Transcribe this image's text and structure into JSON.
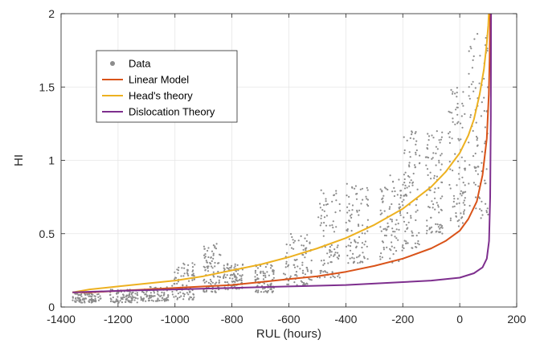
{
  "chart_data": {
    "type": "scatter",
    "title": "",
    "xlabel": "RUL (hours)",
    "ylabel": "HI",
    "xlim": [
      -1400,
      200
    ],
    "ylim": [
      0,
      2
    ],
    "x_ticks": [
      -1400,
      -1200,
      -1000,
      -800,
      -600,
      -400,
      -200,
      0,
      200
    ],
    "x_tick_labels": [
      "-1400",
      "-1200",
      "-1000",
      "-800",
      "-600",
      "-400",
      "-200",
      "0",
      "200"
    ],
    "y_ticks": [
      0,
      0.5,
      1,
      1.5,
      2
    ],
    "y_tick_labels": [
      "0",
      "0.5",
      "1",
      "1.5",
      "2"
    ],
    "grid": true,
    "legend_position": "top-left",
    "scatter": {
      "name": "Data",
      "color": "#8c8c8c",
      "clusters": [
        {
          "x": [
            -1360,
            -1260
          ],
          "y": [
            0.03,
            0.1
          ]
        },
        {
          "x": [
            -1230,
            -1130
          ],
          "y": [
            0.03,
            0.12
          ]
        },
        {
          "x": [
            -1120,
            -1020
          ],
          "y": [
            0.04,
            0.14
          ]
        },
        {
          "x": [
            -1010,
            -930
          ],
          "y": [
            0.05,
            0.3
          ]
        },
        {
          "x": [
            -900,
            -840
          ],
          "y": [
            0.1,
            0.45
          ]
        },
        {
          "x": [
            -830,
            -760
          ],
          "y": [
            0.12,
            0.3
          ]
        },
        {
          "x": [
            -720,
            -650
          ],
          "y": [
            0.1,
            0.3
          ]
        },
        {
          "x": [
            -620,
            -520
          ],
          "y": [
            0.15,
            0.5
          ]
        },
        {
          "x": [
            -500,
            -420
          ],
          "y": [
            0.2,
            0.8
          ]
        },
        {
          "x": [
            -400,
            -320
          ],
          "y": [
            0.3,
            0.85
          ]
        },
        {
          "x": [
            -280,
            -200
          ],
          "y": [
            0.3,
            0.9
          ]
        },
        {
          "x": [
            -200,
            -140
          ],
          "y": [
            0.4,
            1.2
          ]
        },
        {
          "x": [
            -120,
            -60
          ],
          "y": [
            0.5,
            1.2
          ]
        },
        {
          "x": [
            -40,
            20
          ],
          "y": [
            0.55,
            1.5
          ]
        },
        {
          "x": [
            30,
            100
          ],
          "y": [
            0.6,
            1.9
          ]
        }
      ]
    },
    "series": [
      {
        "name": "Linear Model",
        "color": "#d95319",
        "x": [
          -1360,
          -1300,
          -1200,
          -1100,
          -1000,
          -900,
          -800,
          -700,
          -600,
          -500,
          -400,
          -300,
          -200,
          -100,
          -50,
          0,
          30,
          60,
          80,
          95,
          102,
          105,
          107
        ],
        "y": [
          0.1,
          0.1,
          0.11,
          0.12,
          0.13,
          0.14,
          0.15,
          0.17,
          0.19,
          0.21,
          0.24,
          0.28,
          0.33,
          0.4,
          0.45,
          0.52,
          0.6,
          0.72,
          0.9,
          1.15,
          1.45,
          1.7,
          2.0
        ]
      },
      {
        "name": "Head's theory",
        "color": "#edb120",
        "x": [
          -1360,
          -1300,
          -1200,
          -1100,
          -1000,
          -900,
          -800,
          -700,
          -600,
          -500,
          -400,
          -300,
          -200,
          -100,
          -50,
          0,
          30,
          50,
          70,
          85,
          95,
          100,
          102
        ],
        "y": [
          0.1,
          0.12,
          0.14,
          0.16,
          0.18,
          0.21,
          0.25,
          0.29,
          0.34,
          0.4,
          0.47,
          0.56,
          0.67,
          0.82,
          0.92,
          1.05,
          1.17,
          1.28,
          1.45,
          1.62,
          1.8,
          1.92,
          2.0
        ]
      },
      {
        "name": "Dislocation Theory",
        "color": "#7e2f8e",
        "x": [
          -1360,
          -1200,
          -1000,
          -800,
          -600,
          -400,
          -200,
          -100,
          0,
          50,
          80,
          95,
          103,
          107,
          109,
          110
        ],
        "y": [
          0.1,
          0.11,
          0.12,
          0.13,
          0.14,
          0.15,
          0.17,
          0.18,
          0.2,
          0.23,
          0.27,
          0.33,
          0.45,
          0.75,
          1.3,
          2.0
        ]
      }
    ]
  }
}
